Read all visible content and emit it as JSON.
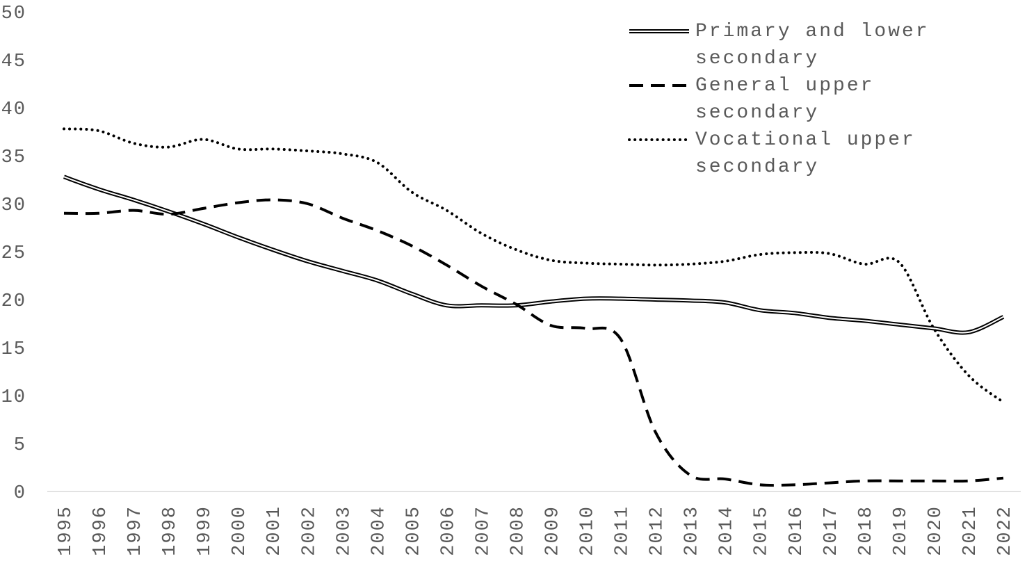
{
  "chart_data": {
    "type": "line",
    "categories": [
      "1995",
      "1996",
      "1997",
      "1998",
      "1999",
      "2000",
      "2001",
      "2002",
      "2003",
      "2004",
      "2005",
      "2006",
      "2007",
      "2008",
      "2009",
      "2010",
      "2011",
      "2012",
      "2013",
      "2014",
      "2015",
      "2016",
      "2017",
      "2018",
      "2019",
      "2020",
      "2021",
      "2022"
    ],
    "series": [
      {
        "name": "Primary and lower secondary",
        "color": "#000000",
        "style": "double",
        "values": [
          32.8,
          31.5,
          30.4,
          29.2,
          27.9,
          26.5,
          25.2,
          24.0,
          23.0,
          22.0,
          20.6,
          19.4,
          19.4,
          19.4,
          19.8,
          20.1,
          20.1,
          20.0,
          19.9,
          19.7,
          18.9,
          18.6,
          18.1,
          17.8,
          17.4,
          17.0,
          16.6,
          18.2
        ]
      },
      {
        "name": "General upper secondary",
        "color": "#000000",
        "style": "dash",
        "values": [
          29.0,
          29.0,
          29.3,
          28.9,
          29.5,
          30.1,
          30.4,
          30.0,
          28.5,
          27.2,
          25.6,
          23.6,
          21.4,
          19.5,
          17.3,
          17.0,
          15.9,
          6.2,
          1.7,
          1.3,
          0.7,
          0.7,
          0.9,
          1.1,
          1.1,
          1.1,
          1.1,
          1.4
        ]
      },
      {
        "name": "Vocational upper secondary",
        "color": "#000000",
        "style": "dot",
        "values": [
          37.8,
          37.6,
          36.3,
          35.9,
          36.7,
          35.7,
          35.7,
          35.5,
          35.2,
          34.3,
          31.2,
          29.3,
          26.9,
          25.2,
          24.1,
          23.8,
          23.7,
          23.6,
          23.7,
          24.0,
          24.7,
          24.9,
          24.8,
          23.7,
          23.9,
          17.0,
          12.1,
          9.3
        ]
      }
    ],
    "ylim": [
      0,
      50
    ],
    "yticks": [
      0,
      5,
      10,
      15,
      20,
      25,
      30,
      35,
      40,
      45,
      50
    ],
    "grid": false,
    "legend": "top-right"
  }
}
